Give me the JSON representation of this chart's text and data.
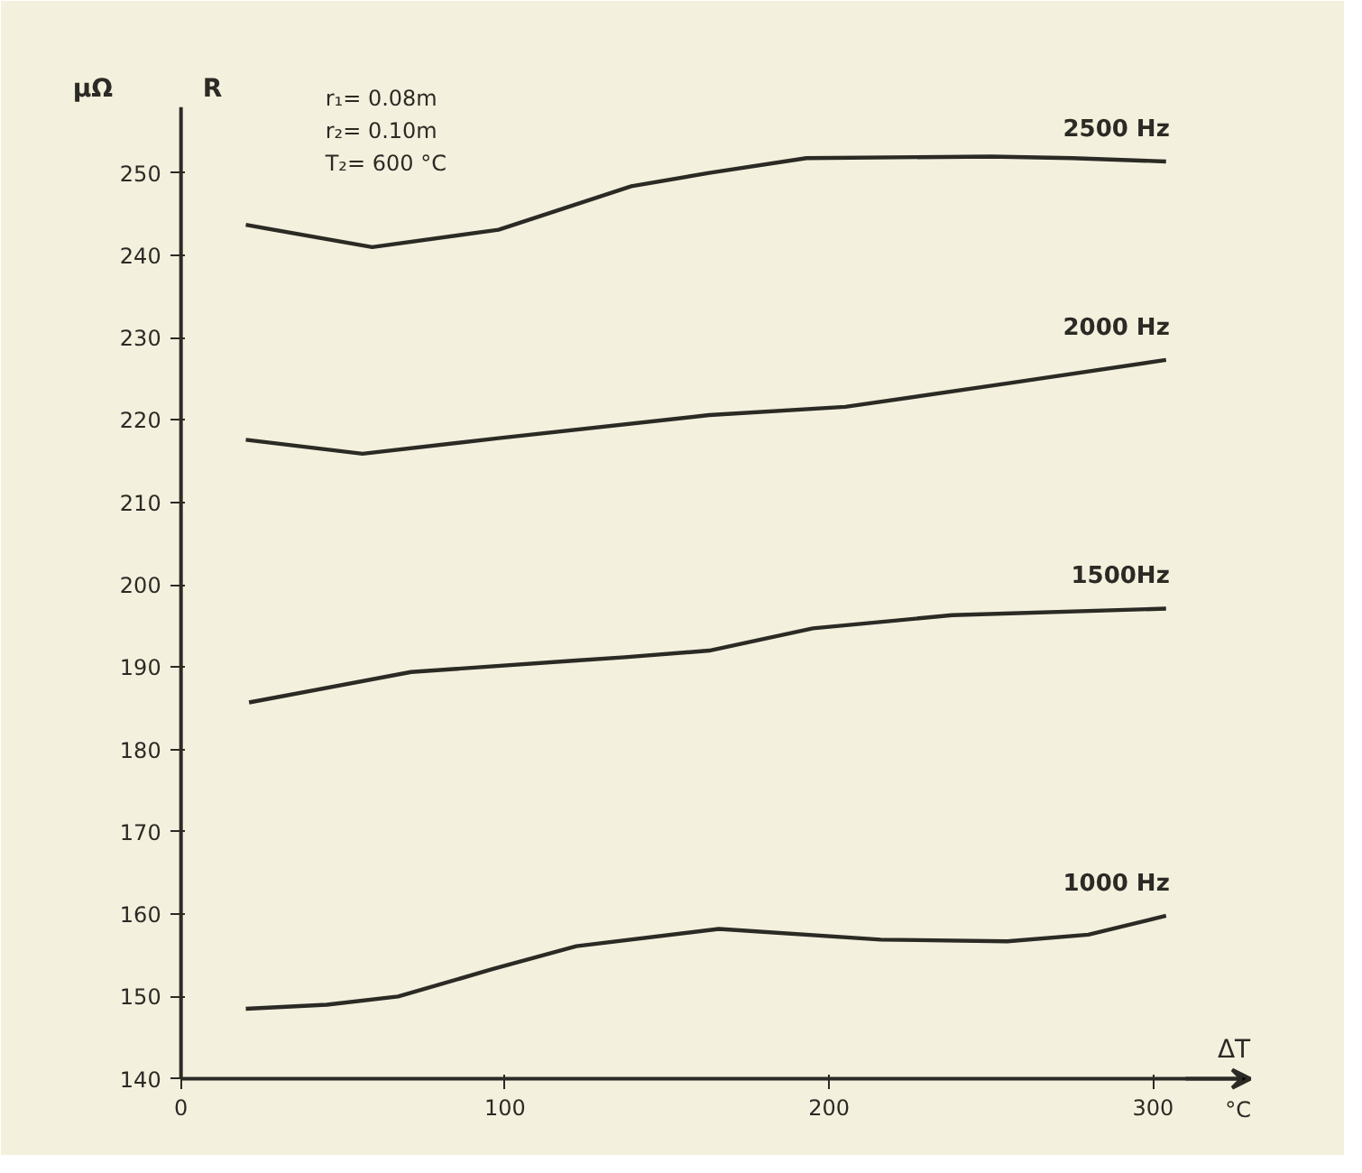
{
  "chart_data": {
    "type": "line",
    "xlabel": "ΔT",
    "ylabel": "μΩ",
    "annotations": [
      "R",
      "r₁= 0.08m",
      "r₂= 0.10m",
      "T₂= 600 °C",
      "°C"
    ],
    "series": [
      {
        "name": "2500 Hz",
        "color": "#2b2a24",
        "x": [
          20,
          59,
          98,
          139,
          163,
          193,
          250,
          275,
          304
        ],
        "values": [
          243.7,
          241.0,
          243.1,
          248.4,
          250.0,
          251.8,
          252.0,
          251.8,
          251.4
        ]
      },
      {
        "name": "2000 Hz",
        "color": "#2b2a24",
        "x": [
          20,
          56,
          98,
          163,
          205,
          256,
          304
        ],
        "values": [
          217.6,
          215.9,
          217.8,
          220.6,
          221.6,
          224.5,
          227.3
        ]
      },
      {
        "name": "1500Hz",
        "color": "#2b2a24",
        "x": [
          21,
          71,
          122,
          137,
          163,
          195,
          238,
          304
        ],
        "values": [
          185.7,
          189.4,
          190.8,
          191.2,
          192.0,
          194.7,
          196.3,
          197.1
        ]
      },
      {
        "name": "1000 Hz",
        "color": "#2b2a24",
        "x": [
          20,
          45,
          67,
          96,
          122,
          166,
          216,
          255,
          280,
          304
        ],
        "values": [
          148.5,
          149.0,
          150.0,
          153.3,
          156.1,
          158.2,
          156.9,
          156.7,
          157.5,
          159.8
        ]
      }
    ],
    "xlim": [
      0,
      330
    ],
    "ylim": [
      140,
      258
    ],
    "xticks": [
      0,
      100,
      200,
      300
    ],
    "yticks": [
      140,
      150,
      160,
      170,
      180,
      190,
      200,
      210,
      220,
      230,
      240,
      250
    ],
    "grid": false,
    "marker": "none",
    "line_style": "solid"
  }
}
